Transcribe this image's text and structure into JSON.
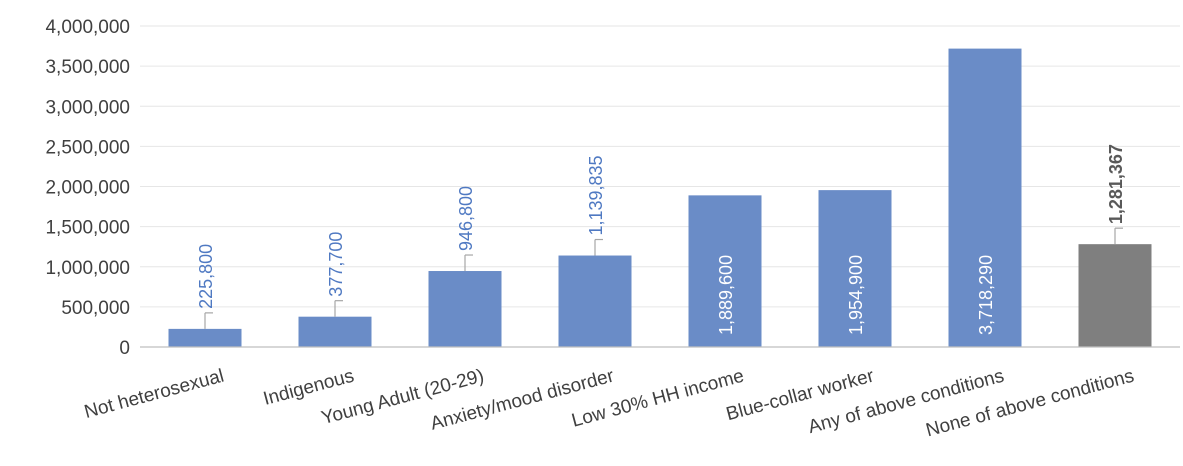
{
  "chart_data": {
    "type": "bar",
    "title": "",
    "xlabel": "",
    "ylabel": "",
    "ylim": [
      0,
      4000000
    ],
    "yticks": [
      0,
      500000,
      1000000,
      1500000,
      2000000,
      2500000,
      3000000,
      3500000,
      4000000
    ],
    "ytick_labels": [
      "0",
      "500,000",
      "1,000,000",
      "1,500,000",
      "2,000,000",
      "2,500,000",
      "3,000,000",
      "3,500,000",
      "4,000,000"
    ],
    "grid": true,
    "legend": "none",
    "categories": [
      "Not heterosexual",
      "Indigenous",
      "Young Adult (20-29)",
      "Anxiety/mood disorder",
      "Low 30% HH income",
      "Blue-collar worker",
      "Any of above conditions",
      "None of above conditions"
    ],
    "values": [
      225800,
      377700,
      946800,
      1139835,
      1889600,
      1954900,
      3718290,
      1281367
    ],
    "data_labels": [
      "225,800",
      "377,700",
      "946,800",
      "1,139,835",
      "1,889,600",
      "1,954,900",
      "3,718,290",
      "1,281,367"
    ],
    "data_label_placement": [
      "outside",
      "outside",
      "outside",
      "outside",
      "inside",
      "inside",
      "inside",
      "outside"
    ],
    "bar_colors": [
      "#6a8cc7",
      "#6a8cc7",
      "#6a8cc7",
      "#6a8cc7",
      "#6a8cc7",
      "#6a8cc7",
      "#6a8cc7",
      "#7f7f7f"
    ],
    "label_colors": [
      "#4f79c2",
      "#4f79c2",
      "#4f79c2",
      "#4f79c2",
      "#ffffff",
      "#ffffff",
      "#ffffff",
      "#595959"
    ]
  }
}
